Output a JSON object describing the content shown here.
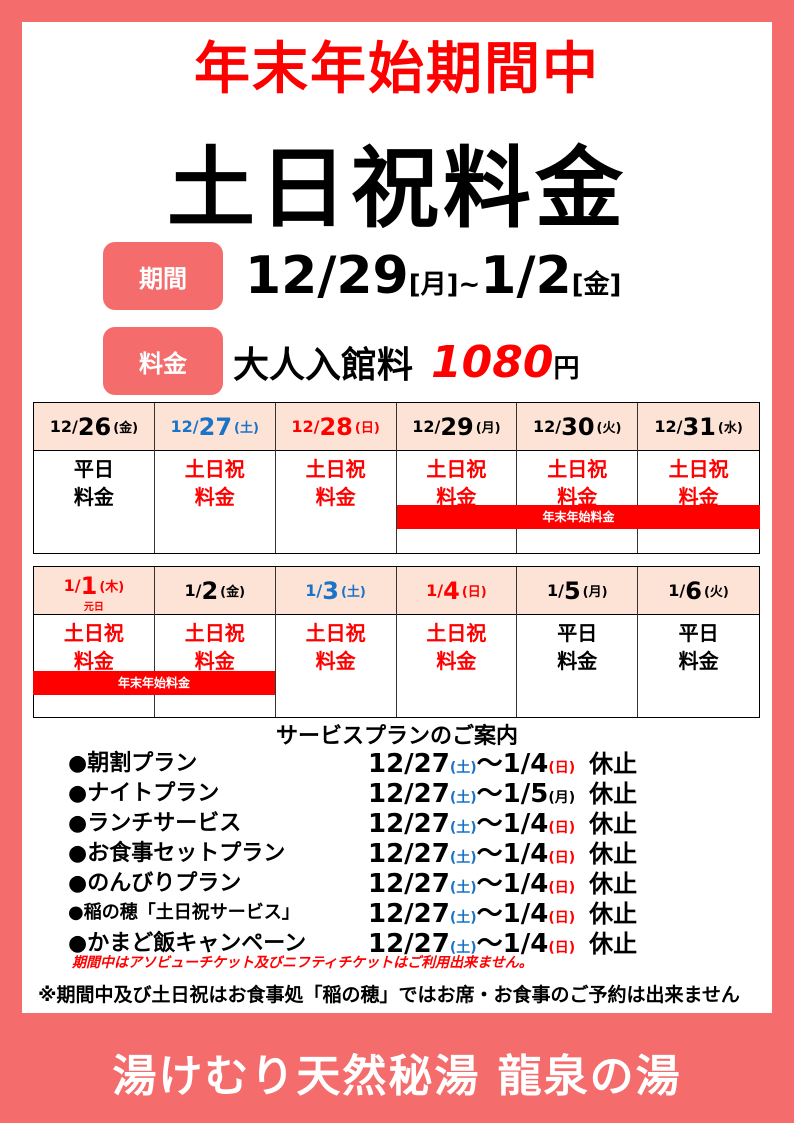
{
  "title_line1": "年末年始期間中",
  "title_line2": "土日祝料金",
  "period": {
    "label": "期間",
    "start": "12/29",
    "start_wd": "[月]",
    "sep": "~",
    "end": "1/2",
    "end_wd": "[金]"
  },
  "fee": {
    "label": "料金",
    "text": "大人入館料",
    "amount": "1080",
    "unit": "円"
  },
  "colors": {
    "background": "#f46c6c",
    "red": "#ff0000",
    "blue": "#1a73c8",
    "header": "#fde3d5"
  },
  "calendar": [
    [
      {
        "m": "12/",
        "d": "26",
        "w": "(金)",
        "c": "#000",
        "rate": [
          "平日",
          "料金"
        ],
        "rc": "#000"
      },
      {
        "m": "12/",
        "d": "27",
        "w": "(土)",
        "c": "#1a73c8",
        "rate": [
          "土日祝",
          "料金"
        ],
        "rc": "#f00"
      },
      {
        "m": "12/",
        "d": "28",
        "w": "(日)",
        "c": "#f00",
        "rate": [
          "土日祝",
          "料金"
        ],
        "rc": "#f00"
      },
      {
        "m": "12/",
        "d": "29",
        "w": "(月)",
        "c": "#000",
        "rate": [
          "土日祝",
          "料金"
        ],
        "rc": "#f00"
      },
      {
        "m": "12/",
        "d": "30",
        "w": "(火)",
        "c": "#000",
        "rate": [
          "土日祝",
          "料金"
        ],
        "rc": "#f00"
      },
      {
        "m": "12/",
        "d": "31",
        "w": "(水)",
        "c": "#000",
        "rate": [
          "土日祝",
          "料金"
        ],
        "rc": "#f00"
      }
    ],
    [
      {
        "m": "1/",
        "d": "1",
        "w": "(木)",
        "c": "#f00",
        "sub": "元日",
        "rate": [
          "土日祝",
          "料金"
        ],
        "rc": "#f00"
      },
      {
        "m": "1/",
        "d": "2",
        "w": "(金)",
        "c": "#000",
        "rate": [
          "土日祝",
          "料金"
        ],
        "rc": "#f00"
      },
      {
        "m": "1/",
        "d": "3",
        "w": "(土)",
        "c": "#1a73c8",
        "rate": [
          "土日祝",
          "料金"
        ],
        "rc": "#f00"
      },
      {
        "m": "1/",
        "d": "4",
        "w": "(日)",
        "c": "#f00",
        "rate": [
          "土日祝",
          "料金"
        ],
        "rc": "#f00"
      },
      {
        "m": "1/",
        "d": "5",
        "w": "(月)",
        "c": "#000",
        "rate": [
          "平日",
          "料金"
        ],
        "rc": "#000"
      },
      {
        "m": "1/",
        "d": "6",
        "w": "(火)",
        "c": "#000",
        "rate": [
          "平日",
          "料金"
        ],
        "rc": "#000"
      }
    ]
  ],
  "band_label": "年末年始料金",
  "services": {
    "title": "サービスプランのご案内",
    "items": [
      {
        "name": "●朝割プラン",
        "from": "12/27",
        "from_wd": "(土)",
        "to": "1/4",
        "to_wd": "(日)",
        "status": "休止"
      },
      {
        "name": "●ナイトプラン",
        "from": "12/27",
        "from_wd": "(土)",
        "to": "1/5",
        "to_wd": "(月)",
        "status": "休止"
      },
      {
        "name": "●ランチサービス",
        "from": "12/27",
        "from_wd": "(土)",
        "to": "1/4",
        "to_wd": "(日)",
        "status": "休止"
      },
      {
        "name": "●お食事セットプラン",
        "from": "12/27",
        "from_wd": "(土)",
        "to": "1/4",
        "to_wd": "(日)",
        "status": "休止"
      },
      {
        "name": "●のんびりプラン",
        "from": "12/27",
        "from_wd": "(土)",
        "to": "1/4",
        "to_wd": "(日)",
        "status": "休止"
      },
      {
        "name": "●稲の穂「土日祝サービス」",
        "from": "12/27",
        "from_wd": "(土)",
        "to": "1/4",
        "to_wd": "(日)",
        "status": "休止"
      },
      {
        "name": "●かまど飯キャンペーン",
        "from": "12/27",
        "from_wd": "(土)",
        "to": "1/4",
        "to_wd": "(日)",
        "status": "休止"
      }
    ],
    "tilde": "～"
  },
  "note_red": "期間中はアソビューチケット及びニフティチケットはご利用出来ません。",
  "note_black": "※期間中及び土日祝はお食事処「稲の穂」ではお席・お食事のご予約は出来ません",
  "footer": "湯けむり天然秘湯 龍泉の湯"
}
